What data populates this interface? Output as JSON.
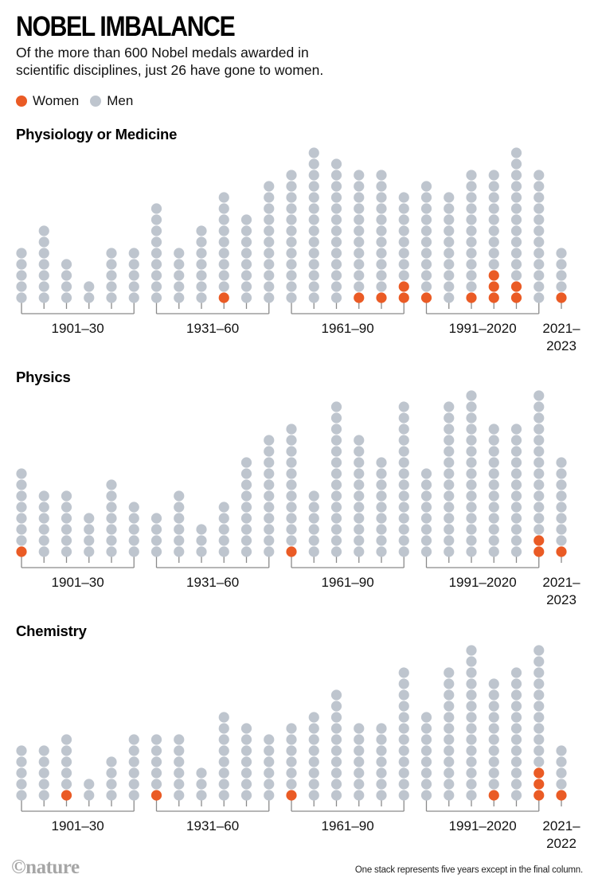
{
  "header": {
    "title": "NOBEL IMBALANCE",
    "subtitle_line1": "Of the more than 600 Nobel medals awarded in",
    "subtitle_line2": "scientific disciplines, just 26 have gone to women."
  },
  "legend": [
    {
      "label": "Women",
      "color": "#ea5b25"
    },
    {
      "label": "Men",
      "color": "#bec5ce"
    }
  ],
  "footer": {
    "logo": "©nature",
    "note": "One stack represents five years except in the final column."
  },
  "colors": {
    "women": "#ea5b25",
    "men": "#bec5ce",
    "axis": "#8a8a8a"
  },
  "chart_data": [
    {
      "type": "dot-stack",
      "title": "Physiology or Medicine",
      "group_labels": [
        "1901–30",
        "1931–60",
        "1961–90",
        "1991–2020",
        "2021–\n2023"
      ],
      "columns_per_group": [
        6,
        6,
        6,
        6,
        1
      ],
      "totals": [
        5,
        7,
        4,
        2,
        5,
        5,
        9,
        5,
        7,
        10,
        8,
        11,
        12,
        14,
        13,
        12,
        12,
        10,
        11,
        10,
        12,
        12,
        14,
        12,
        5
      ],
      "women": [
        0,
        0,
        0,
        0,
        0,
        0,
        0,
        0,
        0,
        1,
        0,
        0,
        0,
        0,
        0,
        1,
        1,
        2,
        1,
        0,
        1,
        3,
        2,
        0,
        1
      ]
    },
    {
      "type": "dot-stack",
      "title": "Physics",
      "group_labels": [
        "1901–30",
        "1931–60",
        "1961–90",
        "1991–2020",
        "2021–\n2023"
      ],
      "columns_per_group": [
        6,
        6,
        6,
        6,
        1
      ],
      "totals": [
        8,
        6,
        6,
        4,
        7,
        5,
        4,
        6,
        3,
        5,
        9,
        11,
        12,
        6,
        14,
        11,
        9,
        14,
        8,
        14,
        15,
        12,
        12,
        15,
        9
      ],
      "women": [
        1,
        0,
        0,
        0,
        0,
        0,
        0,
        0,
        0,
        0,
        0,
        0,
        1,
        0,
        0,
        0,
        0,
        0,
        0,
        0,
        0,
        0,
        0,
        2,
        1
      ]
    },
    {
      "type": "dot-stack",
      "title": "Chemistry",
      "group_labels": [
        "1901–30",
        "1931–60",
        "1961–90",
        "1991–2020",
        "2021–\n2022"
      ],
      "columns_per_group": [
        6,
        6,
        6,
        6,
        1
      ],
      "totals": [
        5,
        5,
        6,
        2,
        4,
        6,
        6,
        6,
        3,
        8,
        7,
        6,
        7,
        8,
        10,
        7,
        7,
        12,
        8,
        12,
        14,
        11,
        12,
        14,
        5
      ],
      "women": [
        0,
        0,
        1,
        0,
        0,
        0,
        1,
        0,
        0,
        0,
        0,
        0,
        1,
        0,
        0,
        0,
        0,
        0,
        0,
        0,
        0,
        1,
        0,
        3,
        1
      ]
    }
  ]
}
